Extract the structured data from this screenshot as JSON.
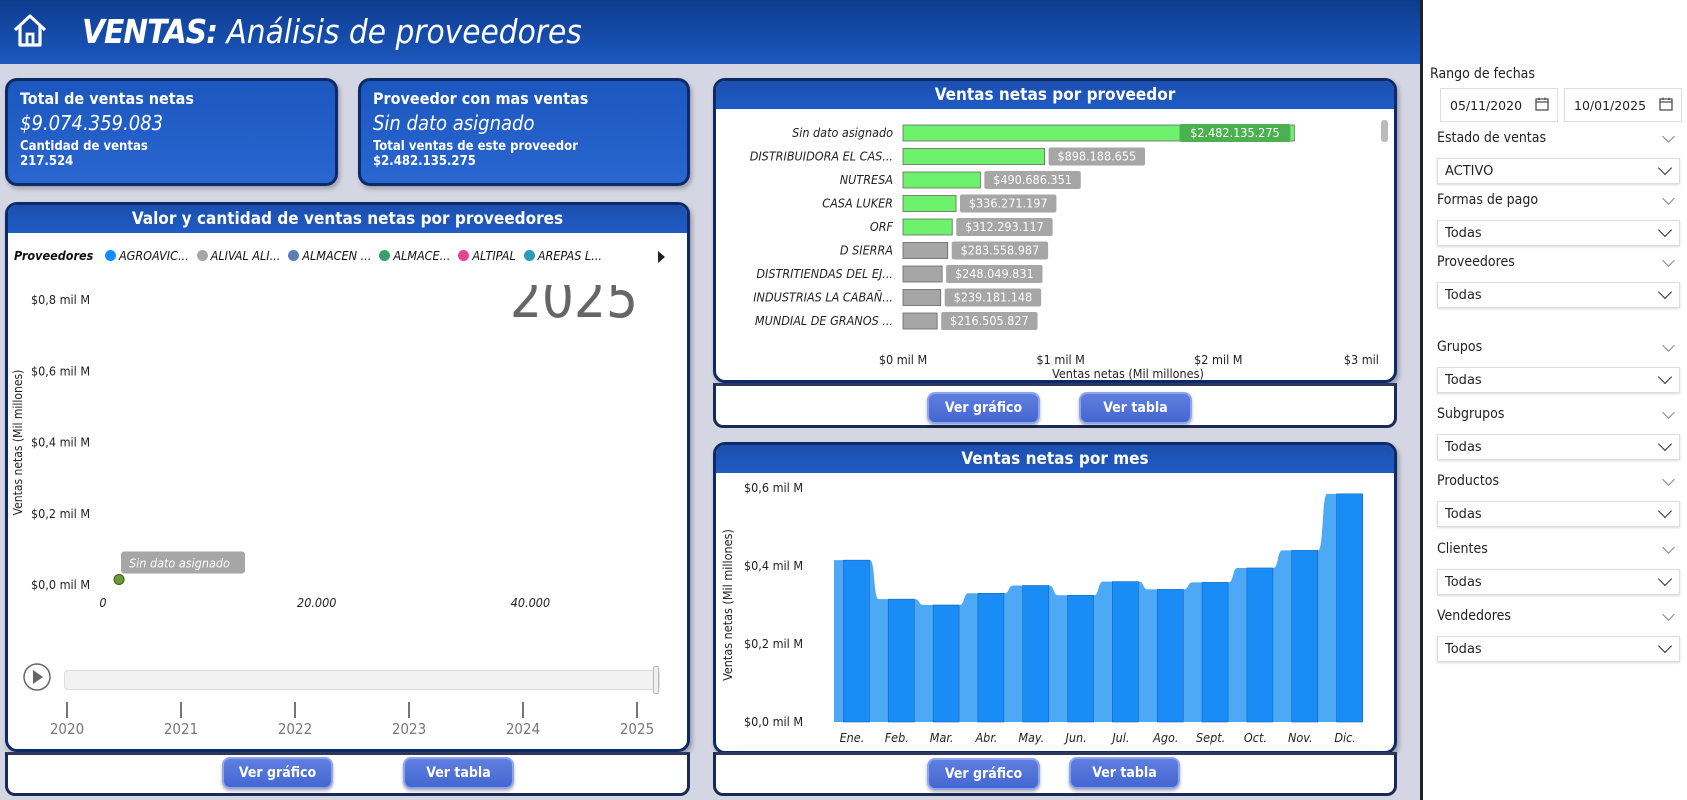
{
  "header": {
    "title_bold": "VENTAS:",
    "title_rest": " Análisis de proveedores"
  },
  "kpi1": {
    "label": "Total de ventas netas",
    "value": "$9.074.359.083",
    "sub_label": "Cantidad de ventas",
    "sub_value": "217.524"
  },
  "kpi2": {
    "label": "Proveedor con mas ventas",
    "value": "Sin dato asignado",
    "sub_label": "Total ventas de este proveedor",
    "sub_value": "$2.482.135.275"
  },
  "scatter_panel": {
    "title": "Valor y cantidad de ventas netas por proveedores",
    "legend_title": "Proveedores",
    "legend": [
      {
        "label": "AGROAVIC...",
        "color": "#118dff"
      },
      {
        "label": "ALIVAL ALI...",
        "color": "#a6a6a6"
      },
      {
        "label": "ALMACEN ...",
        "color": "#5a7fb5"
      },
      {
        "label": "ALMACE...",
        "color": "#3aa06b"
      },
      {
        "label": "ALTIPAL",
        "color": "#e84393"
      },
      {
        "label": "AREPAS L...",
        "color": "#2c9bb8"
      }
    ],
    "play_axis_year": "2025",
    "timeline_years": [
      "2020",
      "2021",
      "2022",
      "2023",
      "2024",
      "2025"
    ],
    "btn_chart": "Ver gráfico",
    "btn_table": "Ver tabla"
  },
  "bar_panel": {
    "title": "Ventas netas por proveedor",
    "btn_chart": "Ver gráfico",
    "btn_table": "Ver tabla"
  },
  "month_panel": {
    "title": "Ventas netas por mes",
    "btn_chart": "Ver gráfico",
    "btn_table": "Ver tabla"
  },
  "chart_data": [
    {
      "type": "scatter",
      "title": "Valor y cantidad de ventas netas por proveedores",
      "ylabel": "Ventas netas (Mil millones)",
      "xlabel": "",
      "y_ticks": [
        "$0,0 mil M",
        "$0,2 mil M",
        "$0,4 mil M",
        "$0,6 mil M",
        "$0,8 mil M"
      ],
      "x_ticks": [
        "0",
        "20.000",
        "40.000"
      ],
      "ylim": [
        0,
        0.8
      ],
      "xlim": [
        0,
        51000
      ],
      "points": [
        {
          "label": "Sin dato asignado",
          "x": 1500,
          "y": 0.01,
          "color": "#6a9a3a"
        }
      ]
    },
    {
      "type": "bar",
      "title": "Ventas netas por proveedor",
      "xlabel": "Ventas netas (Mil millones)",
      "x_ticks": [
        "$0 mil M",
        "$1 mil M",
        "$2 mil M",
        "$3 mil M"
      ],
      "xlim": [
        0,
        3
      ],
      "categories": [
        "Sin dato asignado",
        "DISTRIBUIDORA EL CAS...",
        "NUTRESA",
        "CASA LUKER",
        "ORF",
        "D SIERRA",
        "DISTRITIENDAS DEL EJ...",
        "INDUSTRIAS LA CABAÑ...",
        "MUNDIAL DE GRANOS ..."
      ],
      "values": [
        2.482135275,
        0.898188655,
        0.490686351,
        0.336271197,
        0.312293117,
        0.283558987,
        0.248049831,
        0.239181148,
        0.216505827
      ],
      "labels": [
        "$2.482.135.275",
        "$898.188.655",
        "$490.686.351",
        "$336.271.197",
        "$312.293.117",
        "$283.558.987",
        "$248.049.831",
        "$239.181.148",
        "$216.505.827"
      ],
      "colors": [
        "#6ef26e",
        "#6ef26e",
        "#6ef26e",
        "#6ef26e",
        "#6ef26e",
        "#a6a6a6",
        "#a6a6a6",
        "#a6a6a6",
        "#a6a6a6"
      ]
    },
    {
      "type": "bar",
      "title": "Ventas netas por mes",
      "ylabel": "Ventas netas (Mil millones)",
      "y_ticks": [
        "$0,0 mil M",
        "$0,2 mil M",
        "$0,4 mil M",
        "$0,6 mil M"
      ],
      "ylim": [
        0,
        0.6
      ],
      "categories": [
        "Ene.",
        "Feb.",
        "Mar.",
        "Abr.",
        "May.",
        "Jun.",
        "Jul.",
        "Ago.",
        "Sept.",
        "Oct.",
        "Nov.",
        "Dic."
      ],
      "values": [
        0.415,
        0.315,
        0.3,
        0.33,
        0.35,
        0.325,
        0.36,
        0.34,
        0.358,
        0.395,
        0.44,
        0.585
      ]
    }
  ],
  "sidebar": {
    "date_range_label": "Rango de fechas",
    "date_from": "05/11/2020",
    "date_to": "10/01/2025",
    "filters": [
      {
        "label": "Estado de ventas",
        "value": "ACTIVO"
      },
      {
        "label": "Formas de pago",
        "value": "Todas"
      },
      {
        "label": "Proveedores",
        "value": "Todas"
      },
      {
        "label": "Grupos",
        "value": "Todas"
      },
      {
        "label": "Subgrupos",
        "value": "Todas"
      },
      {
        "label": "Productos",
        "value": "Todas"
      },
      {
        "label": "Clientes",
        "value": "Todas"
      },
      {
        "label": "Vendedores",
        "value": "Todas"
      }
    ]
  }
}
